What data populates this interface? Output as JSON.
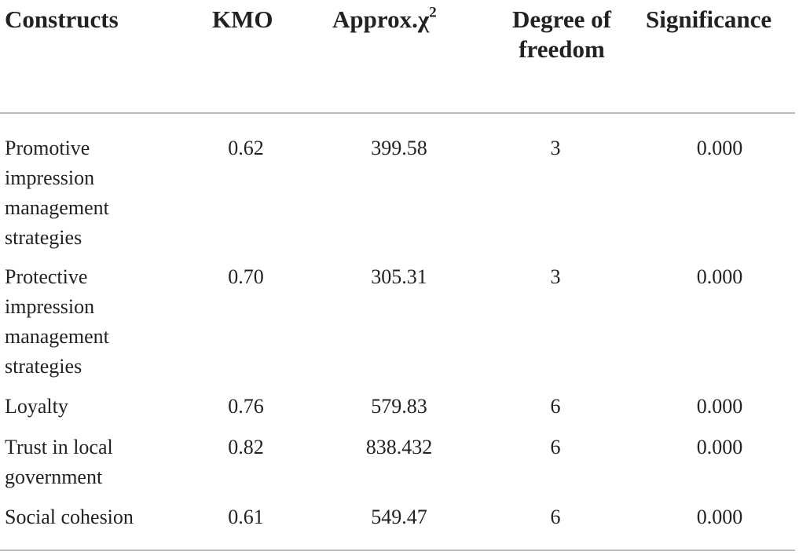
{
  "table": {
    "headers": {
      "constructs": "Constructs",
      "kmo": "KMO",
      "chi_base": "Approx.χ",
      "chi_sup": "2",
      "dof": "Degree of freedom",
      "significance": "Significance"
    },
    "rows": [
      {
        "construct": "Promotive impression management strategies",
        "kmo": "0.62",
        "chi": "399.58",
        "dof": "3",
        "sig": "0.000"
      },
      {
        "construct": "Protective impression management strategies",
        "kmo": "0.70",
        "chi": "305.31",
        "dof": "3",
        "sig": "0.000"
      },
      {
        "construct": "Loyalty",
        "kmo": "0.76",
        "chi": "579.83",
        "dof": "6",
        "sig": "0.000"
      },
      {
        "construct": "Trust in local government",
        "kmo": "0.82",
        "chi": "838.432",
        "dof": "6",
        "sig": "0.000"
      },
      {
        "construct": "Social cohesion",
        "kmo": "0.61",
        "chi": "549.47",
        "dof": "6",
        "sig": "0.000"
      }
    ]
  }
}
